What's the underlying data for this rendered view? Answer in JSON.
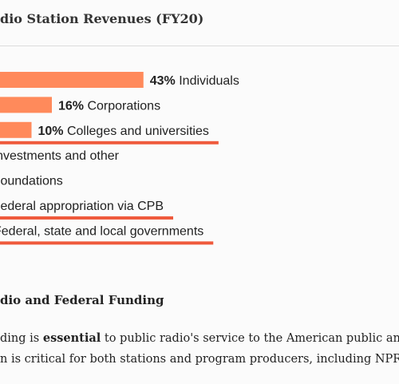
{
  "chart_data": {
    "type": "bar",
    "title": "dio Station Revenues (FY20)",
    "categories": [
      "Individuals",
      "Corporations",
      "Colleges and universities",
      "Investments and other",
      "Foundations",
      "Federal appropriation via CPB",
      "Federal, state and local governments"
    ],
    "values": [
      43,
      16,
      10,
      null,
      null,
      null,
      null
    ],
    "value_labels": [
      "43%",
      "16%",
      "10%",
      "%",
      "%",
      "%",
      ""
    ],
    "underlined": [
      false,
      false,
      true,
      false,
      false,
      true,
      true
    ],
    "xlim": [
      0,
      100
    ],
    "grid": false,
    "legend": "none"
  },
  "colors": {
    "bar": "#ff8a5b",
    "underline": "#ef5a3c",
    "text": "#222222"
  },
  "section": {
    "heading": "dio and Federal Funding",
    "line1_before": "ding is ",
    "line1_bold": "essential",
    "line1_after": " to public radio's service to the American public and",
    "line2": "n is critical for both stations and program producers, including NPR."
  }
}
